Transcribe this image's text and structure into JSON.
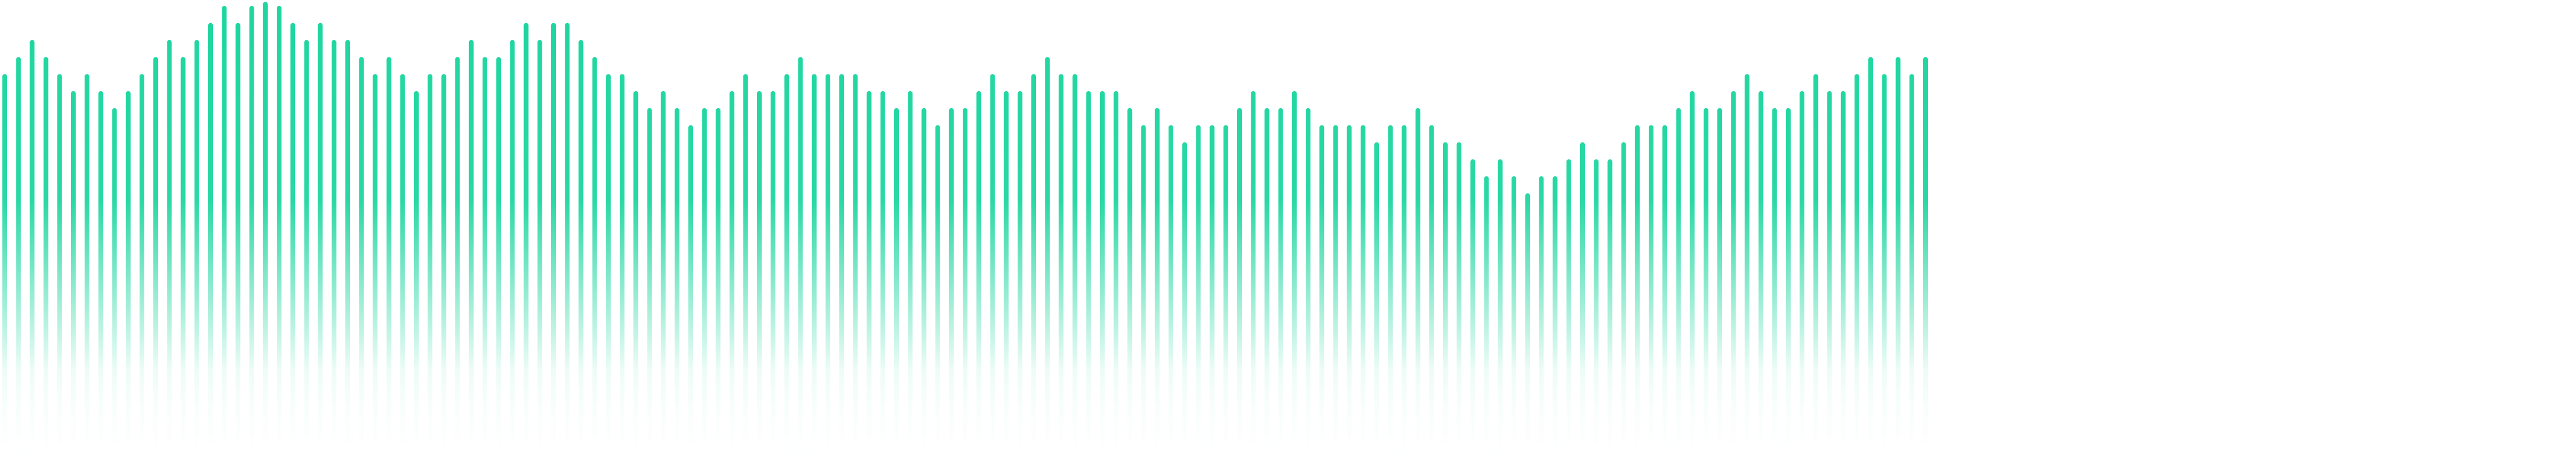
{
  "waveform": {
    "accent_color": "#1ed69f",
    "fade_color": "#ffffff",
    "bar_levels": [
      0.84,
      0.88,
      0.92,
      0.88,
      0.84,
      0.8,
      0.84,
      0.8,
      0.76,
      0.8,
      0.84,
      0.88,
      0.92,
      0.88,
      0.92,
      0.96,
      1.0,
      0.96,
      1.0,
      1.04,
      1.0,
      0.96,
      0.92,
      0.96,
      0.92,
      0.92,
      0.88,
      0.84,
      0.88,
      0.84,
      0.8,
      0.84,
      0.84,
      0.88,
      0.92,
      0.88,
      0.88,
      0.92,
      0.96,
      0.92,
      0.96,
      0.96,
      0.92,
      0.88,
      0.84,
      0.84,
      0.8,
      0.76,
      0.8,
      0.76,
      0.72,
      0.76,
      0.76,
      0.8,
      0.84,
      0.8,
      0.8,
      0.84,
      0.88,
      0.84,
      0.84,
      0.84,
      0.84,
      0.8,
      0.8,
      0.76,
      0.8,
      0.76,
      0.72,
      0.76,
      0.76,
      0.8,
      0.84,
      0.8,
      0.8,
      0.84,
      0.88,
      0.84,
      0.84,
      0.8,
      0.8,
      0.8,
      0.76,
      0.72,
      0.76,
      0.72,
      0.68,
      0.72,
      0.72,
      0.72,
      0.76,
      0.8,
      0.76,
      0.76,
      0.8,
      0.76,
      0.72,
      0.72,
      0.72,
      0.72,
      0.68,
      0.72,
      0.72,
      0.76,
      0.72,
      0.68,
      0.68,
      0.64,
      0.6,
      0.64,
      0.6,
      0.56,
      0.6,
      0.6,
      0.64,
      0.68,
      0.64,
      0.64,
      0.68,
      0.72,
      0.72,
      0.72,
      0.76,
      0.8,
      0.76,
      0.76,
      0.8,
      0.84,
      0.8,
      0.76,
      0.76,
      0.8,
      0.84,
      0.8,
      0.8,
      0.84,
      0.88,
      0.84,
      0.88,
      0.84,
      0.88
    ]
  }
}
